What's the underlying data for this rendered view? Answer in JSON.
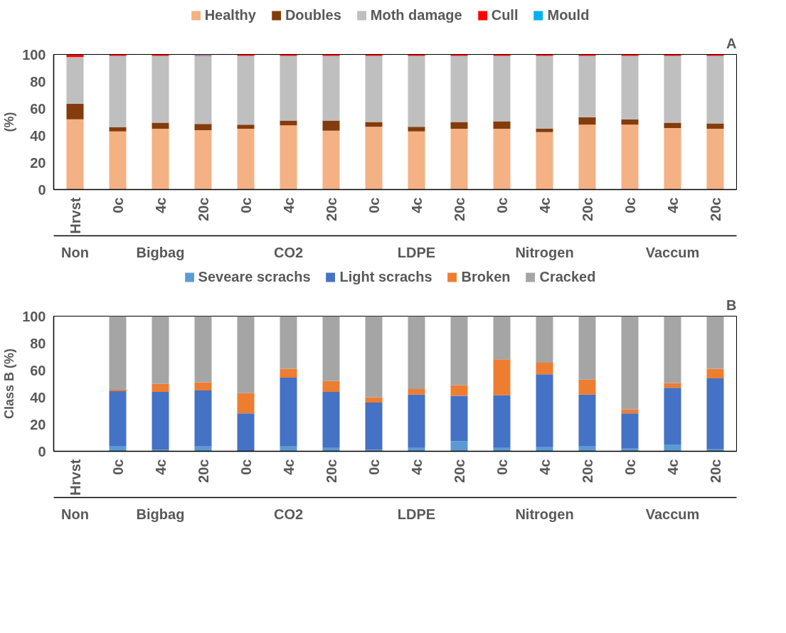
{
  "chart_data": [
    {
      "type": "bar",
      "stacked": true,
      "title": "A",
      "ylabel": "(%)",
      "categories": [
        "Hrvst",
        "0c",
        "4c",
        "20c",
        "0c",
        "4c",
        "20c",
        "0c",
        "4c",
        "20c",
        "0c",
        "4c",
        "20c",
        "0c",
        "4c",
        "20c"
      ],
      "annotations": [
        "Non",
        "Bigbag",
        "CO2",
        "LDPE",
        "Nitrogen",
        "Vaccum"
      ],
      "ylim": [
        0,
        100
      ],
      "yticks": [
        0,
        20,
        40,
        60,
        80,
        100
      ],
      "grid": false,
      "legend": "top",
      "series": [
        {
          "name": "Healthy",
          "color": "#f4b183",
          "values": [
            52,
            43,
            45,
            44,
            45,
            47.5,
            43.5,
            46.5,
            43,
            45,
            45,
            42.5,
            48,
            48,
            45.5,
            45
          ]
        },
        {
          "name": "Doubles",
          "color": "#843c0c",
          "values": [
            11.5,
            3,
            4.5,
            4.5,
            3,
            3.5,
            7.5,
            3.5,
            3.5,
            5,
            5.5,
            2.5,
            5.5,
            4,
            4,
            4
          ]
        },
        {
          "name": "Moth damage",
          "color": "#bfbfbf",
          "values": [
            34.5,
            53,
            49.5,
            50.5,
            51,
            48,
            48,
            49,
            52.5,
            49,
            48.5,
            54,
            45.5,
            47,
            49.5,
            50
          ]
        },
        {
          "name": "Cull",
          "color": "#ff0000",
          "values": [
            2,
            1,
            1,
            0.5,
            1,
            1,
            1,
            1,
            1,
            1,
            1,
            1,
            1,
            1,
            1,
            1
          ]
        },
        {
          "name": "Mould",
          "color": "#00b0f0",
          "values": [
            0,
            0,
            0,
            0.5,
            0,
            0,
            0,
            0,
            0,
            0,
            0,
            0,
            0,
            0,
            0,
            0
          ]
        }
      ]
    },
    {
      "type": "bar",
      "stacked": true,
      "title": "B",
      "ylabel": "Class B (%)",
      "categories": [
        "Hrvst",
        "0c",
        "4c",
        "20c",
        "0c",
        "4c",
        "20c",
        "0c",
        "4c",
        "20c",
        "0c",
        "4c",
        "20c",
        "0c",
        "4c",
        "20c"
      ],
      "annotations": [
        "Non",
        "Bigbag",
        "CO2",
        "LDPE",
        "Nitrogen",
        "Vaccum"
      ],
      "ylim": [
        0,
        100
      ],
      "yticks": [
        0,
        20,
        40,
        60,
        80,
        100
      ],
      "grid": false,
      "legend": "top",
      "series": [
        {
          "name": "Seveare scrachs",
          "color": "#5b9bd5",
          "values": [
            null,
            4,
            1,
            3.5,
            null,
            3.5,
            2.5,
            1,
            2.5,
            7.5,
            2.5,
            3,
            4,
            2,
            5,
            1.5
          ]
        },
        {
          "name": "Light scrachs",
          "color": "#4472c4",
          "values": [
            null,
            40.5,
            43,
            41.5,
            28,
            51,
            41.5,
            35,
            39.5,
            33.5,
            39,
            54,
            38,
            26,
            42,
            52.5
          ]
        },
        {
          "name": "Broken",
          "color": "#ed7d31",
          "values": [
            null,
            1,
            6,
            6,
            15,
            6.5,
            8,
            4,
            4,
            8,
            26.5,
            8.5,
            11,
            3,
            3.5,
            7
          ]
        },
        {
          "name": "Cracked",
          "color": "#a5a5a5",
          "values": [
            null,
            54.5,
            50,
            49,
            57,
            39,
            48,
            60,
            54,
            51,
            32,
            34.5,
            47,
            69,
            49.5,
            39
          ]
        }
      ]
    }
  ]
}
